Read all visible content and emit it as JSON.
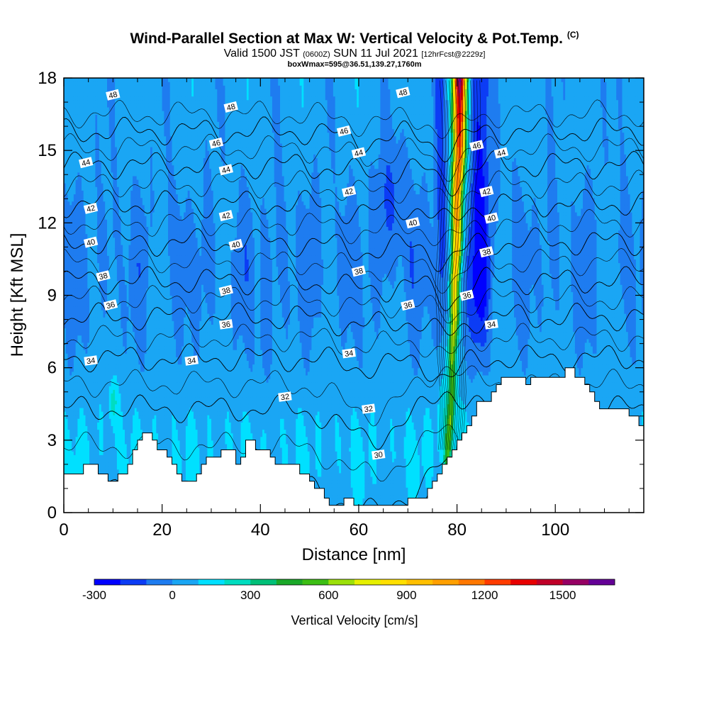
{
  "title": {
    "main": "Wind-Parallel Section at Max W: Vertical Velocity & Pot.Temp.",
    "mark": "(C)",
    "valid": "Valid 1500 JST",
    "zulu": "(0600Z)",
    "date": "SUN 11 Jul 2021",
    "forecast": "[12hrFcst@2229z]",
    "box": "boxWmax=595@36.51,139.27,1760m"
  },
  "chart_data": {
    "type": "heatmap",
    "xlabel": "Distance [nm]",
    "ylabel": "Height [Kft MSL]",
    "xlim": [
      0,
      118
    ],
    "ylim": [
      0,
      18
    ],
    "x_ticks": [
      0,
      20,
      40,
      60,
      80,
      100
    ],
    "y_ticks": [
      0,
      3,
      6,
      9,
      12,
      15,
      18
    ],
    "colorbar": {
      "label": "Vertical Velocity [cm/s]",
      "ticks": [
        -300,
        0,
        300,
        600,
        900,
        1200,
        1500
      ],
      "min": -300,
      "max": 1700,
      "step": 100,
      "colors": [
        "#0000ff",
        "#0c3cf5",
        "#1e7cf0",
        "#1aa6f4",
        "#00e0ff",
        "#00ddc0",
        "#00c078",
        "#1aa828",
        "#3cbe14",
        "#9ce00a",
        "#e6f000",
        "#ffe000",
        "#ffc000",
        "#ffa000",
        "#ff7800",
        "#ff3c00",
        "#e80000",
        "#c00028",
        "#960064",
        "#640096"
      ]
    },
    "terrain_kft": [
      [
        0,
        1.6
      ],
      [
        4,
        1.6
      ],
      [
        4,
        2.0
      ],
      [
        7,
        2.0
      ],
      [
        7,
        1.6
      ],
      [
        9,
        1.6
      ],
      [
        9,
        1.3
      ],
      [
        11,
        1.3
      ],
      [
        11,
        1.6
      ],
      [
        13,
        1.6
      ],
      [
        13,
        2.0
      ],
      [
        14,
        2.0
      ],
      [
        14,
        2.6
      ],
      [
        15,
        2.6
      ],
      [
        15,
        3.0
      ],
      [
        16,
        3.0
      ],
      [
        16,
        3.3
      ],
      [
        18,
        3.3
      ],
      [
        18,
        3.0
      ],
      [
        19,
        3.0
      ],
      [
        19,
        2.6
      ],
      [
        21,
        2.6
      ],
      [
        21,
        2.3
      ],
      [
        22,
        2.3
      ],
      [
        22,
        2.0
      ],
      [
        23,
        2.0
      ],
      [
        23,
        1.6
      ],
      [
        24,
        1.6
      ],
      [
        24,
        1.3
      ],
      [
        27,
        1.3
      ],
      [
        27,
        1.6
      ],
      [
        28,
        1.6
      ],
      [
        28,
        2.0
      ],
      [
        29,
        2.0
      ],
      [
        29,
        2.3
      ],
      [
        32,
        2.3
      ],
      [
        32,
        2.6
      ],
      [
        35,
        2.6
      ],
      [
        35,
        2.0
      ],
      [
        36,
        2.0
      ],
      [
        36,
        2.3
      ],
      [
        37,
        2.3
      ],
      [
        37,
        3.0
      ],
      [
        39,
        3.0
      ],
      [
        39,
        2.6
      ],
      [
        42,
        2.6
      ],
      [
        42,
        2.3
      ],
      [
        43,
        2.3
      ],
      [
        43,
        2.0
      ],
      [
        48,
        2.0
      ],
      [
        48,
        1.6
      ],
      [
        50,
        1.6
      ],
      [
        50,
        1.3
      ],
      [
        51,
        1.3
      ],
      [
        51,
        1.0
      ],
      [
        53,
        1.0
      ],
      [
        53,
        0.6
      ],
      [
        54,
        0.6
      ],
      [
        54,
        0.3
      ],
      [
        57,
        0.3
      ],
      [
        57,
        0.6
      ],
      [
        59,
        0.6
      ],
      [
        59,
        0.3
      ],
      [
        70,
        0.3
      ],
      [
        70,
        0.6
      ],
      [
        74,
        0.6
      ],
      [
        74,
        1.0
      ],
      [
        75,
        1.0
      ],
      [
        75,
        1.3
      ],
      [
        76,
        1.3
      ],
      [
        76,
        1.6
      ],
      [
        77,
        1.6
      ],
      [
        77,
        2.0
      ],
      [
        78,
        2.0
      ],
      [
        78,
        2.3
      ],
      [
        79,
        2.3
      ],
      [
        79,
        2.6
      ],
      [
        80,
        2.6
      ],
      [
        80,
        3.0
      ],
      [
        81,
        3.0
      ],
      [
        81,
        3.3
      ],
      [
        82,
        3.3
      ],
      [
        82,
        3.6
      ],
      [
        83,
        3.6
      ],
      [
        83,
        4.0
      ],
      [
        84,
        4.0
      ],
      [
        84,
        4.6
      ],
      [
        87,
        4.6
      ],
      [
        87,
        5.0
      ],
      [
        88,
        5.0
      ],
      [
        88,
        5.3
      ],
      [
        89,
        5.3
      ],
      [
        89,
        5.6
      ],
      [
        94,
        5.6
      ],
      [
        94,
        5.3
      ],
      [
        95,
        5.3
      ],
      [
        95,
        5.6
      ],
      [
        102,
        5.6
      ],
      [
        102,
        6.0
      ],
      [
        104,
        6.0
      ],
      [
        104,
        5.6
      ],
      [
        106,
        5.6
      ],
      [
        106,
        5.3
      ],
      [
        107,
        5.3
      ],
      [
        107,
        5.0
      ],
      [
        108,
        5.0
      ],
      [
        108,
        4.6
      ],
      [
        109,
        4.6
      ],
      [
        109,
        4.3
      ],
      [
        115,
        4.3
      ],
      [
        115,
        4.0
      ],
      [
        117,
        4.0
      ],
      [
        117,
        3.6
      ],
      [
        118,
        3.6
      ]
    ],
    "updraft_core": [
      [
        78,
        2.3,
        350
      ],
      [
        78.5,
        3.5,
        420
      ],
      [
        79,
        5,
        480
      ],
      [
        79,
        6.5,
        600
      ],
      [
        79.5,
        8,
        780
      ],
      [
        79.5,
        9.5,
        900
      ],
      [
        80,
        11,
        1000
      ],
      [
        80,
        13,
        1100
      ],
      [
        80.5,
        15,
        1250
      ],
      [
        80.5,
        17,
        1400
      ],
      [
        80.5,
        18,
        1600
      ]
    ],
    "theta_contours_c": [
      30,
      32,
      34,
      36,
      38,
      40,
      42,
      44,
      46,
      48
    ],
    "contour_labels": [
      {
        "text": "48",
        "x": 10,
        "y": 17.3
      },
      {
        "text": "48",
        "x": 34,
        "y": 16.8
      },
      {
        "text": "48",
        "x": 69,
        "y": 17.4
      },
      {
        "text": "46",
        "x": 31,
        "y": 15.3
      },
      {
        "text": "46",
        "x": 57,
        "y": 15.8
      },
      {
        "text": "46",
        "x": 84,
        "y": 15.2
      },
      {
        "text": "44",
        "x": 4.5,
        "y": 14.5
      },
      {
        "text": "44",
        "x": 33,
        "y": 14.2
      },
      {
        "text": "44",
        "x": 60,
        "y": 14.9
      },
      {
        "text": "44",
        "x": 89,
        "y": 14.9
      },
      {
        "text": "42",
        "x": 5.5,
        "y": 12.6
      },
      {
        "text": "42",
        "x": 33,
        "y": 12.3
      },
      {
        "text": "42",
        "x": 58,
        "y": 13.3
      },
      {
        "text": "42",
        "x": 86,
        "y": 13.3
      },
      {
        "text": "40",
        "x": 5.5,
        "y": 11.2
      },
      {
        "text": "40",
        "x": 35,
        "y": 11.1
      },
      {
        "text": "40",
        "x": 71,
        "y": 12.0
      },
      {
        "text": "40",
        "x": 87,
        "y": 12.2
      },
      {
        "text": "38",
        "x": 8,
        "y": 9.8
      },
      {
        "text": "38",
        "x": 33,
        "y": 9.2
      },
      {
        "text": "38",
        "x": 60,
        "y": 10.0
      },
      {
        "text": "38",
        "x": 86,
        "y": 10.8
      },
      {
        "text": "36",
        "x": 9.5,
        "y": 8.6
      },
      {
        "text": "36",
        "x": 33,
        "y": 7.8
      },
      {
        "text": "36",
        "x": 70,
        "y": 8.6
      },
      {
        "text": "36",
        "x": 82,
        "y": 9.0
      },
      {
        "text": "34",
        "x": 5.5,
        "y": 6.3
      },
      {
        "text": "34",
        "x": 26,
        "y": 6.3
      },
      {
        "text": "34",
        "x": 58,
        "y": 6.6
      },
      {
        "text": "34",
        "x": 87,
        "y": 7.8
      },
      {
        "text": "32",
        "x": 45,
        "y": 4.8
      },
      {
        "text": "32",
        "x": 62,
        "y": 4.3
      },
      {
        "text": "30",
        "x": 64,
        "y": 2.4
      }
    ]
  }
}
